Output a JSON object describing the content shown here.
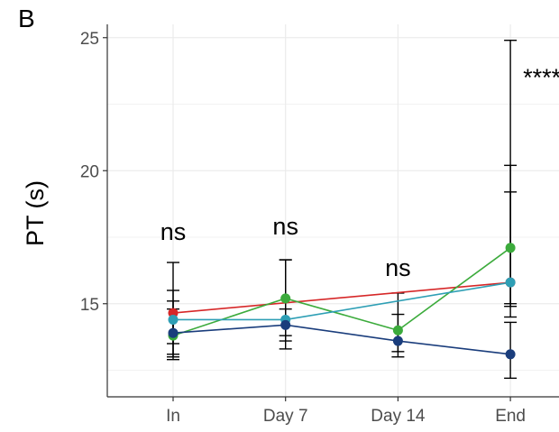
{
  "panel_label": "B",
  "chart_data": {
    "type": "line",
    "xlabel": "",
    "ylabel": "PT (s)",
    "categories": [
      "In",
      "Day 7",
      "Day 14",
      "End"
    ],
    "ylim": [
      11.5,
      25.5
    ],
    "yticks": [
      15,
      20,
      25
    ],
    "grid": true,
    "legend": "none",
    "series": [
      {
        "color": "#d62728",
        "values": [
          14.65,
          null,
          null,
          15.8
        ],
        "err_low": [
          13.0,
          null,
          null,
          15.0
        ],
        "err_high": [
          16.55,
          null,
          null,
          20.2
        ]
      },
      {
        "color": "#3cab3c",
        "values": [
          13.8,
          15.2,
          14.0,
          17.1
        ],
        "err_low": [
          12.9,
          13.3,
          13.2,
          14.9
        ],
        "err_high": [
          15.1,
          16.65,
          14.6,
          24.9
        ]
      },
      {
        "color": "#2e9fb5",
        "values": [
          14.4,
          14.4,
          null,
          15.8
        ],
        "err_low": [
          13.5,
          13.8,
          null,
          14.5
        ],
        "err_high": [
          15.5,
          16.65,
          null,
          19.2
        ]
      },
      {
        "color": "#1a3d7c",
        "values": [
          13.9,
          14.2,
          13.6,
          13.1
        ],
        "err_low": [
          13.1,
          13.6,
          13.0,
          12.2
        ],
        "err_high": [
          14.8,
          14.8,
          15.4,
          14.3
        ]
      }
    ],
    "annotations": [
      {
        "category": "In",
        "text": "ns",
        "y": 17.4
      },
      {
        "category": "Day 7",
        "text": "ns",
        "y": 17.6
      },
      {
        "category": "Day 14",
        "text": "ns",
        "y": 16.05
      },
      {
        "category": "End",
        "text": "****",
        "y": 23.2
      }
    ]
  }
}
